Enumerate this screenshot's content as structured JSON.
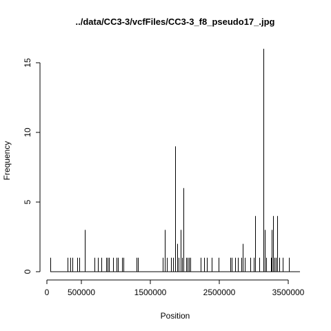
{
  "chart_data": {
    "type": "line",
    "title": "../data/CC3-3/vcfFiles/CC3-3_f8_pseudo17_.jpg",
    "xlabel": "Position",
    "ylabel": "Frequency",
    "xlim": [
      0,
      3600000
    ],
    "ylim": [
      0,
      16
    ],
    "xticks": [
      0,
      500000,
      1500000,
      2500000,
      3500000
    ],
    "xtick_labels": [
      "0",
      "500000",
      "1500000",
      "2500000",
      "3500000"
    ],
    "yticks": [
      0,
      5,
      10,
      15
    ],
    "ytick_labels": [
      "0",
      "5",
      "10",
      "15"
    ],
    "grid": false,
    "series": [
      {
        "x": [
          50000,
          300000,
          340000,
          370000,
          440000,
          470000,
          550000,
          690000,
          740000,
          790000,
          860000,
          880000,
          900000,
          960000,
          1010000,
          1030000,
          1090000,
          1110000,
          1300000,
          1320000,
          1680000,
          1710000,
          1740000,
          1800000,
          1830000,
          1860000,
          1890000,
          1910000,
          1940000,
          1960000,
          1980000,
          2020000,
          2040000,
          2060000,
          2080000,
          2230000,
          2280000,
          2320000,
          2390000,
          2490000,
          2660000,
          2680000,
          2730000,
          2770000,
          2820000,
          2840000,
          2870000,
          2950000,
          3000000,
          3020000,
          3080000,
          3140000,
          3160000,
          3180000,
          3250000,
          3260000,
          3280000,
          3300000,
          3320000,
          3340000,
          3370000,
          3420000,
          3510000
        ],
        "y": [
          1,
          1,
          1,
          1,
          1,
          1,
          3,
          1,
          1,
          1,
          1,
          1,
          1,
          1,
          1,
          1,
          1,
          1,
          1,
          1,
          1,
          3,
          1,
          1,
          1,
          9,
          2,
          1,
          3,
          1,
          6,
          1,
          1,
          1,
          1,
          1,
          1,
          1,
          1,
          1,
          1,
          1,
          1,
          1,
          1,
          2,
          1,
          1,
          1,
          4,
          1,
          16,
          3,
          1,
          1,
          3,
          4,
          1,
          1,
          4,
          1,
          1,
          1
        ]
      }
    ]
  }
}
